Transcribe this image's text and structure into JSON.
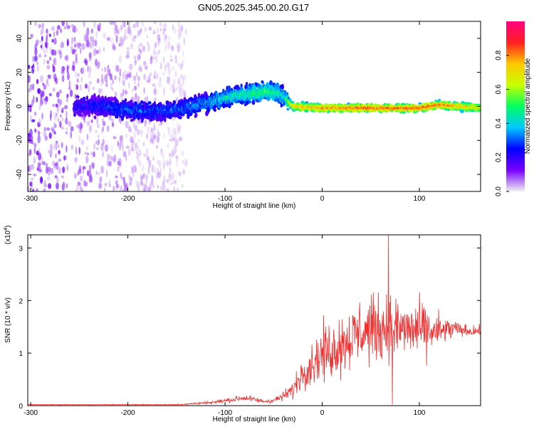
{
  "title": "GN05.2025.345.00.20.G17",
  "chart_data": [
    {
      "type": "heatmap",
      "name": "spectrogram",
      "xlabel": "Height of straight line (km)",
      "ylabel": "Frequency (Hz)",
      "xlim": [
        -303,
        163
      ],
      "ylim": [
        -50,
        50
      ],
      "xticks": [
        -300,
        -200,
        -100,
        0,
        100
      ],
      "xtick_labels": [
        "-300",
        "-200",
        "-100",
        "0",
        "100"
      ],
      "yticks": [
        -40,
        -20,
        0,
        20,
        40
      ],
      "ytick_labels": [
        "-40",
        "-20",
        "0",
        "20",
        "40"
      ],
      "colorbar": {
        "label": "Normalized spectral amplitude",
        "range": [
          0,
          1
        ],
        "ticks": [
          0.0,
          0.2,
          0.4,
          0.6,
          0.8
        ],
        "tick_labels": [
          "0.0",
          "0.2",
          "0.4",
          "0.6",
          "0.8"
        ],
        "colormap": [
          "#f0f0f0",
          "#7a00ff",
          "#0000ff",
          "#00c8ff",
          "#00ff60",
          "#c8ff00",
          "#ffc800",
          "#ff2020",
          "#ff0080"
        ]
      },
      "ridge": {
        "x": [
          -255,
          -230,
          -200,
          -180,
          -150,
          -120,
          -100,
          -80,
          -65,
          -55,
          -45,
          -38,
          -30,
          0,
          50,
          100,
          120,
          163
        ],
        "y": [
          0,
          0,
          -2,
          -3,
          -2,
          2,
          5,
          7,
          8,
          9,
          8,
          5,
          0,
          -1,
          -1,
          -1,
          1,
          -1
        ],
        "amplitude": [
          0.22,
          0.25,
          0.3,
          0.28,
          0.3,
          0.35,
          0.42,
          0.45,
          0.5,
          0.5,
          0.45,
          0.4,
          0.75,
          0.8,
          0.85,
          0.85,
          0.85,
          0.7
        ]
      },
      "noise_region_x": [
        -303,
        -140
      ]
    },
    {
      "type": "line",
      "name": "snr",
      "xlabel": "Height of straight line (km)",
      "ylabel": "SNR (10 * v/v)",
      "scale_label": "(x10",
      "scale_exponent": "4",
      "xlim": [
        -303,
        163
      ],
      "ylim": [
        0,
        3.25
      ],
      "xticks": [
        -300,
        -200,
        -100,
        0,
        100
      ],
      "xtick_labels": [
        "-300",
        "-200",
        "-100",
        "0",
        "100"
      ],
      "yticks": [
        0,
        1,
        2,
        3
      ],
      "ytick_labels": [
        "0",
        "1",
        "2",
        "3"
      ],
      "color": "#ee3030",
      "envelope": {
        "x": [
          -303,
          -200,
          -150,
          -130,
          -110,
          -90,
          -80,
          -60,
          -50,
          -40,
          -30,
          -20,
          -10,
          0,
          10,
          20,
          30,
          40,
          50,
          60,
          70,
          80,
          90,
          100,
          110,
          120,
          130,
          140,
          150,
          163
        ],
        "mean": [
          0.02,
          0.02,
          0.02,
          0.04,
          0.07,
          0.12,
          0.15,
          0.08,
          0.1,
          0.18,
          0.3,
          0.65,
          0.8,
          1.0,
          1.05,
          1.2,
          1.3,
          1.4,
          1.45,
          1.45,
          1.5,
          1.45,
          1.45,
          1.45,
          1.4,
          1.4,
          1.45,
          1.45,
          1.42,
          1.42
        ],
        "spread": [
          0.01,
          0.01,
          0.015,
          0.03,
          0.05,
          0.08,
          0.1,
          0.06,
          0.08,
          0.12,
          0.25,
          0.45,
          0.6,
          0.8,
          0.75,
          0.9,
          0.85,
          0.95,
          0.9,
          0.95,
          0.9,
          0.85,
          0.8,
          0.75,
          0.7,
          0.5,
          0.35,
          0.2,
          0.15,
          0.15
        ]
      },
      "peak": {
        "x": 68,
        "y": 3.25
      },
      "dip": {
        "x": 72,
        "y": 0.02
      },
      "sample_step_km": 0.4
    }
  ]
}
